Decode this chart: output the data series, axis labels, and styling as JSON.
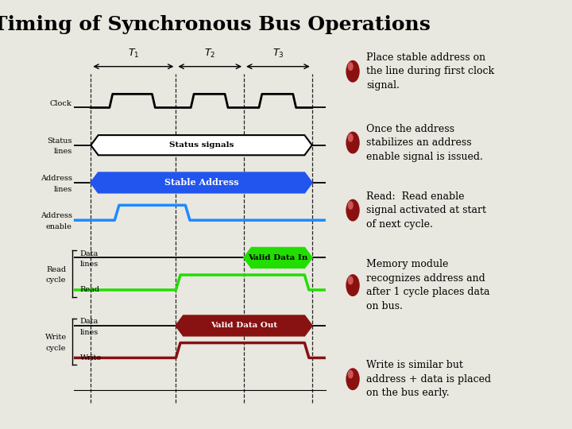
{
  "title": "Timing of Synchronous Bus Operations",
  "bg_color": "#e8e8e0",
  "title_fontsize": 18,
  "bullet_points": [
    "Place stable address on\nthe line during first clock\nsignal.",
    "Once the address\nstabilizes an address\nenable signal is issued.",
    "Read:  Read enable\nsignal activated at start\nof next cycle.",
    "Memory module\nrecognizes address and\nafter 1 cycle places data\non bus.",
    "Write is similar but\naddress + data is placed\non the bus early."
  ],
  "bullet_color": "#8b1010",
  "text_color": "#000000",
  "clock_color": "#000000",
  "addr_fill": "#2255ee",
  "addr_text": "#ffffff",
  "addr_enable_color": "#2288ff",
  "valid_data_in_fill": "#22dd00",
  "valid_data_in_text": "#000000",
  "read_color": "#22dd00",
  "valid_data_out_fill": "#881111",
  "valid_data_out_text": "#ffffff",
  "write_color": "#881111",
  "label_fontsize": 7,
  "signal_fontsize": 7.5
}
